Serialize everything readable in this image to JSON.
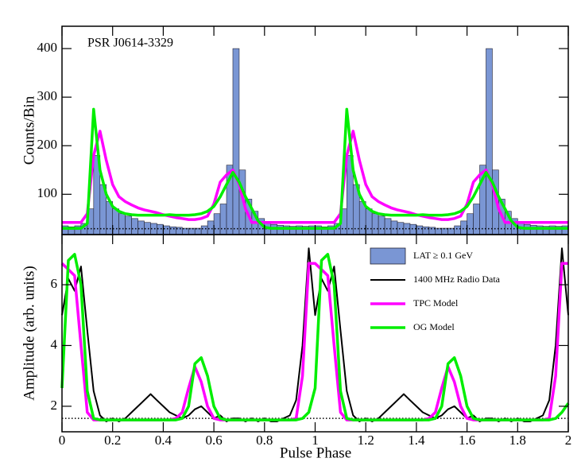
{
  "chart_data": [
    {
      "type": "histogram",
      "label": "PSR J0614-3329",
      "ylabel": "Counts/Bin",
      "name": "LAT ≥ 0.1 GeV",
      "color": "#7a96d4",
      "bins": [
        0,
        0.025,
        0.05,
        0.075,
        0.1,
        0.125,
        0.15,
        0.175,
        0.2,
        0.225,
        0.25,
        0.275,
        0.3,
        0.325,
        0.35,
        0.375,
        0.4,
        0.425,
        0.45,
        0.475,
        0.5,
        0.525,
        0.55,
        0.575,
        0.6,
        0.625,
        0.65,
        0.675,
        0.7,
        0.725,
        0.75,
        0.775,
        0.8,
        0.825,
        0.85,
        0.875,
        0.9,
        0.925,
        0.95,
        0.975,
        1,
        1.025,
        1.05,
        1.075,
        1.1,
        1.125,
        1.15,
        1.175,
        1.2,
        1.225,
        1.25,
        1.275,
        1.3,
        1.325,
        1.35,
        1.375,
        1.4,
        1.425,
        1.45,
        1.475,
        1.5,
        1.525,
        1.55,
        1.575,
        1.6,
        1.625,
        1.65,
        1.675,
        1.7,
        1.725,
        1.75,
        1.775,
        1.8,
        1.825,
        1.85,
        1.875,
        1.9,
        1.925,
        1.95,
        1.975,
        2
      ],
      "values": [
        35,
        33,
        35,
        40,
        70,
        180,
        120,
        85,
        70,
        60,
        55,
        50,
        45,
        42,
        40,
        38,
        35,
        33,
        32,
        30,
        30,
        30,
        35,
        45,
        60,
        80,
        160,
        400,
        150,
        90,
        65,
        50,
        42,
        38,
        36,
        35,
        34,
        35,
        34,
        35,
        35,
        33,
        35,
        40,
        70,
        180,
        120,
        85,
        70,
        60,
        55,
        50,
        45,
        42,
        40,
        38,
        35,
        33,
        32,
        30,
        30,
        30,
        35,
        45,
        60,
        80,
        160,
        400,
        150,
        90,
        65,
        50,
        42,
        38,
        36,
        35,
        34,
        35,
        34,
        35
      ],
      "x": [
        0,
        0.025,
        0.05,
        0.075,
        0.1,
        0.125,
        0.15,
        0.175,
        0.2,
        0.225,
        0.25,
        0.275,
        0.3,
        0.325,
        0.35,
        0.375,
        0.4,
        0.425,
        0.45,
        0.475,
        0.5,
        0.525,
        0.55,
        0.575,
        0.6,
        0.625,
        0.65,
        0.675,
        0.7,
        0.725,
        0.75,
        0.775,
        0.8,
        0.825,
        0.85,
        0.875,
        0.9,
        0.925,
        0.95,
        0.975,
        1,
        1.025,
        1.05,
        1.075,
        1.1,
        1.125,
        1.15,
        1.175,
        1.2,
        1.225,
        1.25,
        1.275,
        1.3,
        1.325,
        1.35,
        1.375,
        1.4,
        1.425,
        1.45,
        1.475,
        1.5,
        1.525,
        1.55,
        1.575,
        1.6,
        1.625,
        1.65,
        1.675,
        1.7,
        1.725,
        1.75,
        1.775,
        1.8,
        1.825,
        1.85,
        1.875,
        1.9,
        1.925,
        1.95,
        1.975,
        2
      ],
      "series": [
        {
          "color": "#ff00ff",
          "values": [
            42,
            42,
            42,
            42,
            60,
            180,
            230,
            170,
            120,
            95,
            85,
            78,
            72,
            68,
            65,
            62,
            58,
            55,
            52,
            50,
            48,
            48,
            50,
            55,
            80,
            125,
            140,
            150,
            120,
            70,
            42,
            42,
            42,
            42,
            42,
            42,
            42,
            42,
            42,
            42,
            42,
            42,
            42,
            42,
            60,
            180,
            230,
            170,
            120,
            95,
            85,
            78,
            72,
            68,
            65,
            62,
            58,
            55,
            52,
            50,
            48,
            48,
            50,
            55,
            80,
            125,
            140,
            150,
            120,
            70,
            42,
            42,
            42,
            42,
            42,
            42,
            42,
            42,
            42,
            42,
            42
          ]
        },
        {
          "color": "#00ee00",
          "values": [
            30,
            30,
            30,
            30,
            40,
            275,
            150,
            100,
            75,
            65,
            60,
            58,
            57,
            57,
            57,
            57,
            57,
            58,
            57,
            57,
            57,
            58,
            60,
            65,
            75,
            95,
            120,
            145,
            125,
            95,
            70,
            45,
            32,
            30,
            30,
            30,
            30,
            30,
            30,
            30,
            30,
            30,
            30,
            30,
            40,
            275,
            150,
            100,
            75,
            65,
            60,
            58,
            57,
            57,
            57,
            57,
            57,
            58,
            57,
            57,
            57,
            58,
            60,
            65,
            75,
            95,
            120,
            145,
            125,
            95,
            70,
            45,
            32,
            30,
            30,
            30,
            30,
            30,
            30,
            30,
            30
          ]
        }
      ],
      "baseline": 29,
      "xlim": [
        0,
        2
      ],
      "ylim": [
        17,
        446
      ],
      "yticks": [
        100,
        200,
        300,
        400
      ],
      "xticks": [
        0,
        0.2,
        0.4,
        0.6,
        0.8,
        1,
        1.2,
        1.4,
        1.6,
        1.8,
        2
      ]
    },
    {
      "type": "line",
      "ylabel": "Amplitude (arb. units)",
      "xlabel": "Pulse Phase",
      "x": [
        0,
        0.025,
        0.05,
        0.075,
        0.1,
        0.125,
        0.15,
        0.175,
        0.2,
        0.225,
        0.25,
        0.275,
        0.3,
        0.325,
        0.35,
        0.375,
        0.4,
        0.425,
        0.45,
        0.475,
        0.5,
        0.525,
        0.55,
        0.575,
        0.6,
        0.625,
        0.65,
        0.675,
        0.7,
        0.725,
        0.75,
        0.775,
        0.8,
        0.825,
        0.85,
        0.875,
        0.9,
        0.925,
        0.95,
        0.975,
        1,
        1.025,
        1.05,
        1.075,
        1.1,
        1.125,
        1.15,
        1.175,
        1.2,
        1.225,
        1.25,
        1.275,
        1.3,
        1.325,
        1.35,
        1.375,
        1.4,
        1.425,
        1.45,
        1.475,
        1.5,
        1.525,
        1.55,
        1.575,
        1.6,
        1.625,
        1.65,
        1.675,
        1.7,
        1.725,
        1.75,
        1.775,
        1.8,
        1.825,
        1.85,
        1.875,
        1.9,
        1.925,
        1.95,
        1.975,
        2
      ],
      "series": [
        {
          "name": "1400 MHz Radio Data",
          "color": "#000000",
          "values": [
            5.0,
            6.2,
            5.8,
            6.6,
            4.5,
            2.5,
            1.7,
            1.5,
            1.6,
            1.5,
            1.6,
            1.8,
            2.0,
            2.2,
            2.4,
            2.2,
            2.0,
            1.8,
            1.7,
            1.6,
            1.7,
            1.9,
            2.0,
            1.8,
            1.6,
            1.7,
            1.5,
            1.6,
            1.6,
            1.5,
            1.6,
            1.5,
            1.6,
            1.5,
            1.5,
            1.6,
            1.7,
            2.2,
            4.0,
            7.2,
            5.0,
            6.2,
            5.8,
            6.6,
            4.5,
            2.5,
            1.7,
            1.5,
            1.6,
            1.5,
            1.6,
            1.8,
            2.0,
            2.2,
            2.4,
            2.2,
            2.0,
            1.8,
            1.7,
            1.6,
            1.7,
            1.9,
            2.0,
            1.8,
            1.6,
            1.7,
            1.5,
            1.6,
            1.6,
            1.5,
            1.6,
            1.5,
            1.6,
            1.5,
            1.5,
            1.6,
            1.7,
            2.2,
            4.0,
            7.2,
            5.0
          ]
        },
        {
          "name": "TPC Model",
          "color": "#ff00ff",
          "values": [
            6.7,
            6.5,
            6.3,
            4.0,
            1.8,
            1.55,
            1.55,
            1.55,
            1.55,
            1.55,
            1.55,
            1.55,
            1.55,
            1.55,
            1.55,
            1.55,
            1.55,
            1.55,
            1.6,
            1.8,
            2.6,
            3.3,
            2.8,
            2.0,
            1.6,
            1.55,
            1.55,
            1.55,
            1.55,
            1.55,
            1.55,
            1.55,
            1.55,
            1.55,
            1.55,
            1.55,
            1.55,
            1.6,
            3.0,
            6.7,
            6.7,
            6.5,
            6.3,
            4.0,
            1.8,
            1.55,
            1.55,
            1.55,
            1.55,
            1.55,
            1.55,
            1.55,
            1.55,
            1.55,
            1.55,
            1.55,
            1.55,
            1.55,
            1.6,
            1.8,
            2.6,
            3.3,
            2.8,
            2.0,
            1.6,
            1.55,
            1.55,
            1.55,
            1.55,
            1.55,
            1.55,
            1.55,
            1.55,
            1.55,
            1.55,
            1.55,
            1.55,
            1.6,
            3.0,
            6.7,
            6.7
          ]
        },
        {
          "name": "OG Model",
          "color": "#00ee00",
          "values": [
            2.6,
            6.8,
            7.0,
            6.0,
            2.5,
            1.6,
            1.55,
            1.55,
            1.55,
            1.55,
            1.55,
            1.55,
            1.55,
            1.55,
            1.55,
            1.55,
            1.55,
            1.55,
            1.55,
            1.6,
            2.0,
            3.4,
            3.6,
            3.0,
            2.0,
            1.6,
            1.55,
            1.55,
            1.55,
            1.55,
            1.55,
            1.55,
            1.55,
            1.55,
            1.55,
            1.55,
            1.55,
            1.55,
            1.6,
            1.8,
            2.6,
            6.8,
            7.0,
            6.0,
            2.5,
            1.6,
            1.55,
            1.55,
            1.55,
            1.55,
            1.55,
            1.55,
            1.55,
            1.55,
            1.55,
            1.55,
            1.55,
            1.55,
            1.55,
            1.6,
            2.0,
            3.4,
            3.6,
            3.0,
            2.0,
            1.6,
            1.55,
            1.55,
            1.55,
            1.55,
            1.55,
            1.55,
            1.55,
            1.55,
            1.55,
            1.55,
            1.55,
            1.55,
            1.6,
            1.8,
            2.1
          ]
        }
      ],
      "baseline": 1.6,
      "xlim": [
        0,
        2
      ],
      "ylim": [
        1.16,
        7.65
      ],
      "yticks": [
        2,
        4,
        6
      ],
      "xticks": [
        0,
        0.2,
        0.4,
        0.6,
        0.8,
        1,
        1.2,
        1.4,
        1.6,
        1.8,
        2
      ]
    }
  ]
}
